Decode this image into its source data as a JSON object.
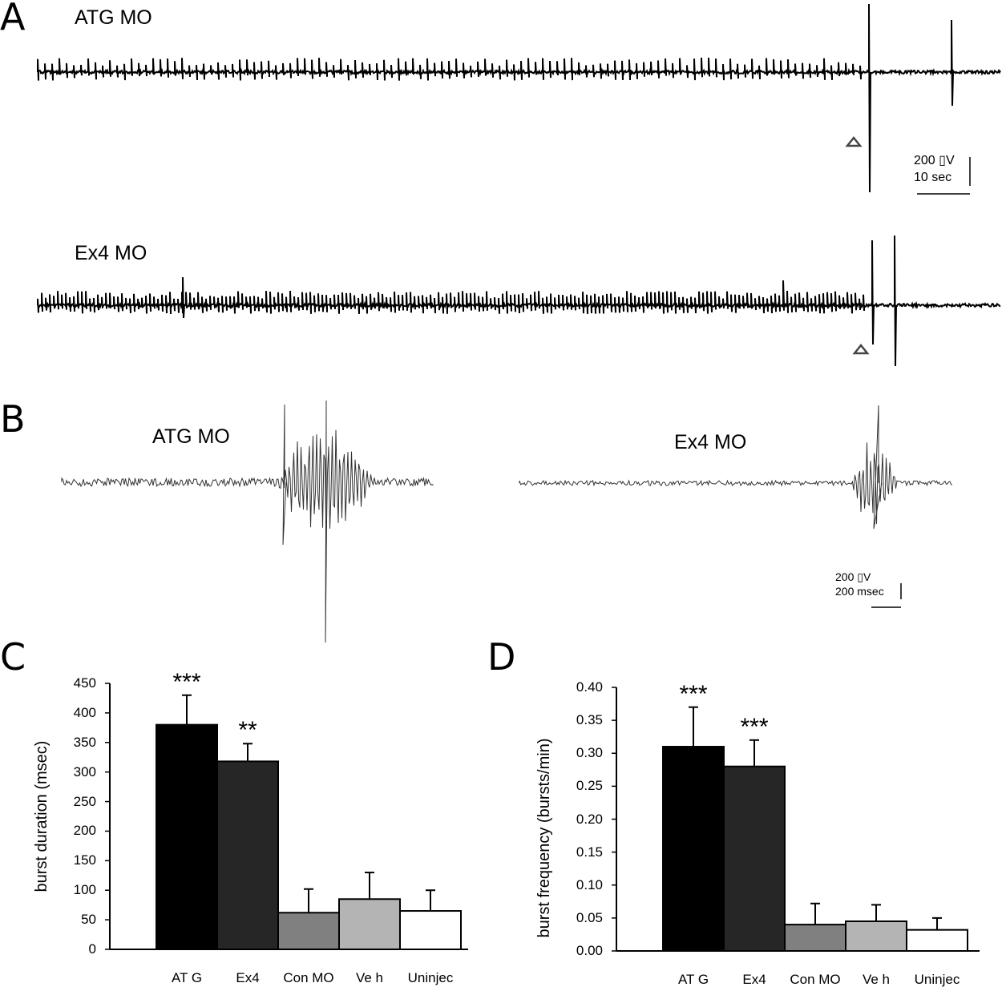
{
  "panels": {
    "A": {
      "letter": "A",
      "trace1_label": "ATG MO",
      "trace2_label": "Ex4 MO",
      "scale_voltage": "200 ▯V",
      "scale_time": "10 sec"
    },
    "B": {
      "letter": "B",
      "trace1_label": "ATG MO",
      "trace2_label": "Ex4 MO",
      "scale_voltage": "200 ▯V",
      "scale_time": "200 msec"
    },
    "C": {
      "letter": "C"
    },
    "D": {
      "letter": "D"
    }
  },
  "chart_data": [
    {
      "type": "bar",
      "panel": "C",
      "categories": [
        "AT G",
        "Ex4",
        "Con MO",
        "Ve h",
        "Uninjec"
      ],
      "values": [
        380,
        318,
        62,
        85,
        65
      ],
      "errors": [
        50,
        30,
        40,
        45,
        35
      ],
      "significance": [
        "***",
        "**",
        "",
        "",
        ""
      ],
      "bar_colors": [
        "#000000",
        "#262626",
        "#808080",
        "#b4b4b4",
        "#ffffff"
      ],
      "ylabel": "burst duration (msec)",
      "xlabel": "",
      "ylim": [
        0,
        450
      ],
      "yticks": [
        "0",
        "50",
        "100",
        "150",
        "200",
        "250",
        "300",
        "350",
        "400",
        "450"
      ]
    },
    {
      "type": "bar",
      "panel": "D",
      "categories": [
        "AT G",
        "Ex4",
        "Con MO",
        "Ve h",
        "Uninjec"
      ],
      "values": [
        0.31,
        0.28,
        0.04,
        0.045,
        0.032
      ],
      "errors": [
        0.06,
        0.04,
        0.032,
        0.025,
        0.018
      ],
      "significance": [
        "***",
        "***",
        "",
        "",
        ""
      ],
      "bar_colors": [
        "#000000",
        "#262626",
        "#808080",
        "#b4b4b4",
        "#ffffff"
      ],
      "ylabel": "burst frequency (bursts/min)",
      "xlabel": "",
      "ylim": [
        0,
        0.4
      ],
      "yticks": [
        "0.00",
        "0.05",
        "0.10",
        "0.15",
        "0.20",
        "0.25",
        "0.30",
        "0.35",
        "0.40"
      ]
    }
  ]
}
